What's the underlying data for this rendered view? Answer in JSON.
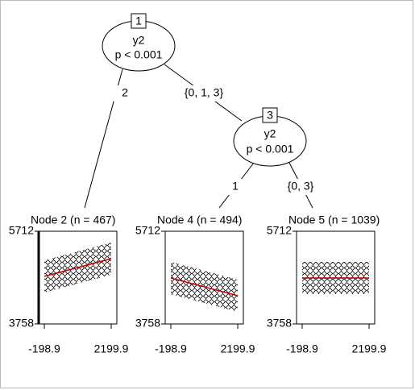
{
  "nodes": [
    {
      "id": "1",
      "label": "y2",
      "p": "p < 0.001"
    },
    {
      "id": "3",
      "label": "y2",
      "p": "p < 0.001"
    }
  ],
  "edges": [
    {
      "label": "2"
    },
    {
      "label": "{0, 1, 3}"
    },
    {
      "label": "1"
    },
    {
      "label": "{0, 3}"
    }
  ],
  "terminals": [
    {
      "title": "Node 2 (n = 467)",
      "xlim": [
        -198.9,
        2199.9
      ],
      "ylim": [
        3758,
        5712
      ],
      "fit": [
        4761,
        5134
      ]
    },
    {
      "title": "Node 4 (n = 494)",
      "xlim": [
        -198.9,
        2199.9
      ],
      "ylim": [
        3758,
        5712
      ],
      "fit": [
        4727,
        4353
      ]
    },
    {
      "title": "Node 5 (n = 1039)",
      "xlim": [
        -198.9,
        2199.9
      ],
      "ylim": [
        3758,
        5712
      ],
      "fit": [
        4727,
        4727
      ]
    }
  ]
}
